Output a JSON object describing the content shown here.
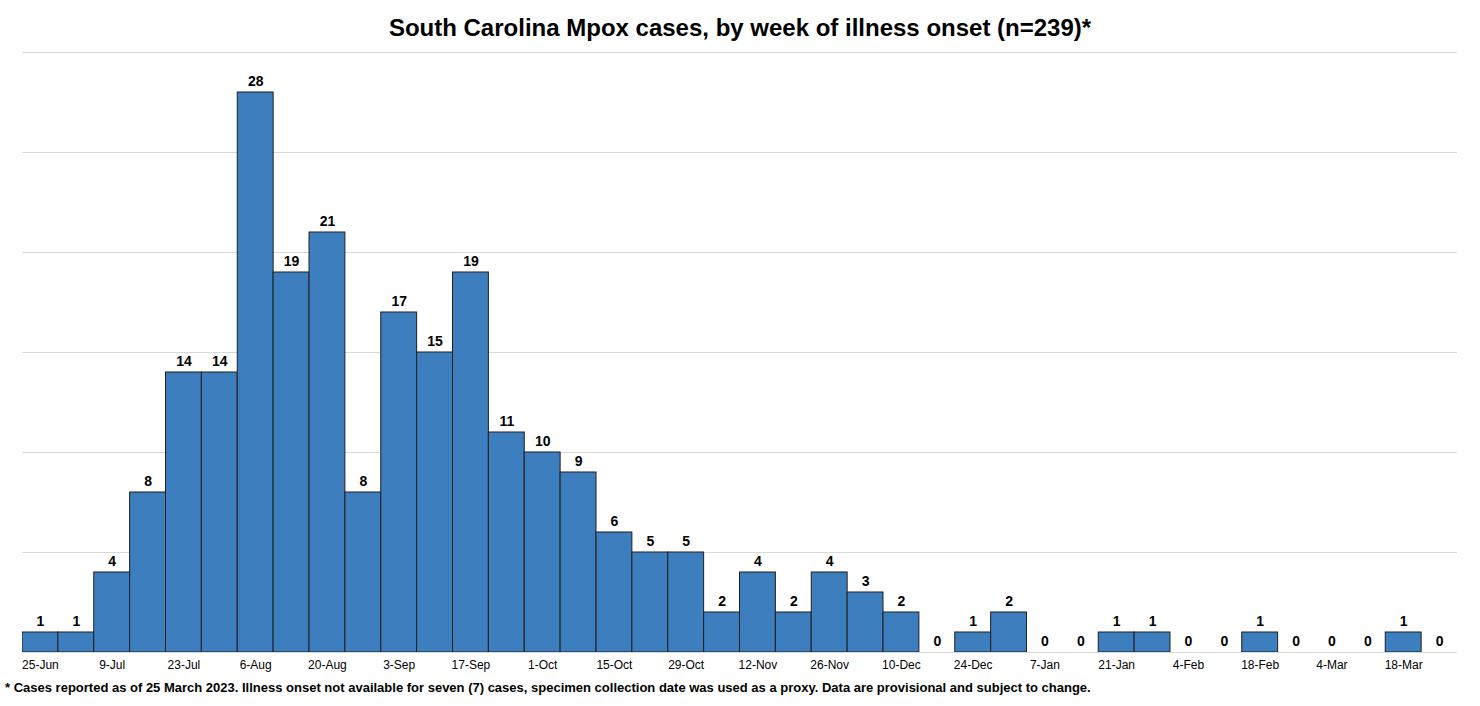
{
  "chart_data": {
    "type": "bar",
    "title": "South Carolina Mpox cases, by week of illness onset (n=239)*",
    "caption": "* Cases reported as of 25 March 2023. Illness onset not available for seven (7) cases, specimen collection date was used as a proxy. Data are provisional and subject to change.",
    "categories": [
      "25-Jun",
      null,
      "9-Jul",
      null,
      "23-Jul",
      null,
      "6-Aug",
      null,
      "20-Aug",
      null,
      "3-Sep",
      null,
      "17-Sep",
      null,
      "1-Oct",
      null,
      "15-Oct",
      null,
      "29-Oct",
      null,
      "12-Nov",
      null,
      "26-Nov",
      null,
      "10-Dec",
      null,
      "24-Dec",
      null,
      "7-Jan",
      null,
      "21-Jan",
      null,
      "4-Feb",
      null,
      "18-Feb",
      null,
      "4-Mar",
      null,
      "18-Mar",
      null
    ],
    "values": [
      1,
      1,
      4,
      8,
      14,
      14,
      28,
      19,
      21,
      8,
      17,
      15,
      19,
      11,
      10,
      9,
      6,
      5,
      5,
      2,
      4,
      2,
      4,
      3,
      2,
      0,
      1,
      2,
      0,
      0,
      1,
      1,
      0,
      0,
      1,
      0,
      0,
      0,
      1,
      0
    ],
    "color": "#3d7ebf",
    "ylim": [
      0,
      30
    ],
    "yticks": [
      0,
      5,
      10,
      15,
      20,
      25,
      30
    ],
    "grid": true,
    "data_labels": true,
    "tick_labels": "x"
  }
}
